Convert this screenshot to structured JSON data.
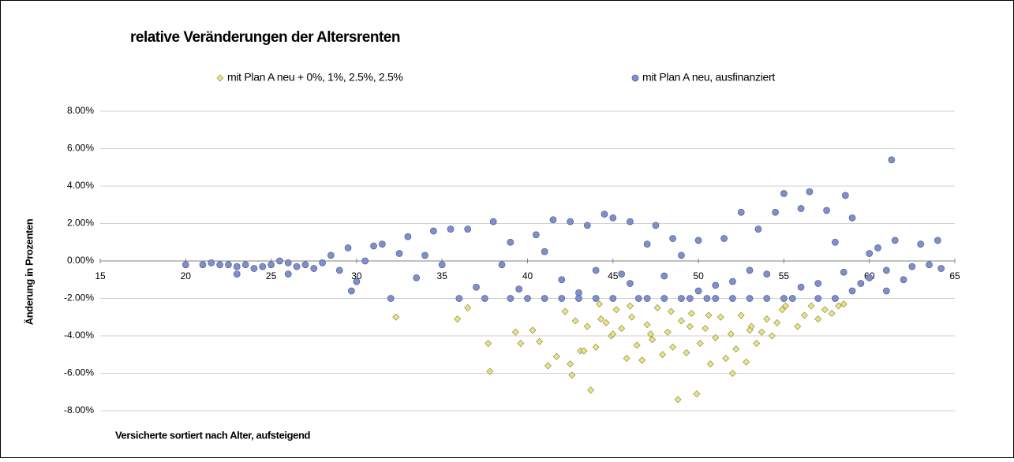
{
  "chart_data": {
    "type": "scatter",
    "title": "relative Veränderungen der Altersrenten",
    "x_label": "Versicherte sortiert nach Alter, aufsteigend",
    "y_label": "Änderung in Prozenten",
    "grid": true,
    "xlim": [
      15,
      65
    ],
    "xticks": [
      15,
      20,
      25,
      30,
      35,
      40,
      45,
      50,
      55,
      60,
      65
    ],
    "ylim": [
      -8,
      8
    ],
    "yticks": [
      {
        "value": -8,
        "label": "-8.00%"
      },
      {
        "value": -6,
        "label": "-6.00%"
      },
      {
        "value": -4,
        "label": "-4.00%"
      },
      {
        "value": -2,
        "label": "-2.00%"
      },
      {
        "value": 0,
        "label": "0.00%"
      },
      {
        "value": 2,
        "label": "2.00%"
      },
      {
        "value": 4,
        "label": "4.00%"
      },
      {
        "value": 6,
        "label": "6.00%"
      },
      {
        "value": 8,
        "label": "8.00%"
      }
    ],
    "series": [
      {
        "name": "mit Plan A neu + 0%, 1%, 2.5%, 2.5%",
        "color": "#ece57c",
        "marker": "diamond",
        "x": [
          32.3,
          35.9,
          36.5,
          37.7,
          37.8,
          39.3,
          39.6,
          40.3,
          40.7,
          41.2,
          41.7,
          42.2,
          42.5,
          42.6,
          42.8,
          43.1,
          43.5,
          43.7,
          44.0,
          44.3,
          44.6,
          44.9,
          45.2,
          45.5,
          45.8,
          46.1,
          46.4,
          46.7,
          47.0,
          47.3,
          47.6,
          47.9,
          48.2,
          48.5,
          48.8,
          49.0,
          49.3,
          49.6,
          49.9,
          50.1,
          50.4,
          50.7,
          51.0,
          51.3,
          51.6,
          51.9,
          52.2,
          52.5,
          52.8,
          53.1,
          53.4,
          53.7,
          54.0,
          54.3,
          54.6,
          54.9,
          55.1,
          55.8,
          56.2,
          56.6,
          57.0,
          57.4,
          57.8,
          58.2,
          58.5,
          46.0,
          47.2,
          48.4,
          49.5,
          50.6,
          52.0,
          53.0,
          44.2,
          45.0,
          43.3
        ],
        "values": [
          -3.0,
          -3.1,
          -2.5,
          -4.4,
          -5.9,
          -3.8,
          -4.4,
          -3.7,
          -4.3,
          -5.6,
          -5.1,
          -2.7,
          -5.5,
          -6.1,
          -3.2,
          -4.8,
          -3.5,
          -6.9,
          -4.6,
          -3.1,
          -3.3,
          -4.0,
          -2.6,
          -3.6,
          -5.2,
          -3.0,
          -4.5,
          -5.3,
          -3.4,
          -4.2,
          -2.5,
          -5.0,
          -3.8,
          -4.6,
          -7.4,
          -3.2,
          -4.9,
          -2.8,
          -7.1,
          -4.4,
          -3.6,
          -5.5,
          -4.1,
          -3.0,
          -5.2,
          -3.9,
          -4.7,
          -2.9,
          -5.4,
          -3.5,
          -4.4,
          -3.8,
          -3.1,
          -4.0,
          -3.3,
          -2.6,
          -2.4,
          -3.5,
          -2.9,
          -2.4,
          -3.1,
          -2.6,
          -2.8,
          -2.4,
          -2.3,
          -2.4,
          -3.9,
          -2.7,
          -3.5,
          -2.9,
          -6.0,
          -3.7,
          -2.3,
          -3.9,
          -4.8
        ]
      },
      {
        "name": "mit Plan A neu, ausfinanziert",
        "color": "#7f90c8",
        "marker": "circle",
        "x": [
          20.0,
          21.0,
          21.5,
          22.0,
          22.5,
          23.0,
          23.0,
          23.5,
          24.0,
          24.5,
          25.0,
          25.5,
          26.0,
          26.0,
          26.5,
          27.0,
          27.5,
          28.0,
          28.5,
          29.0,
          29.5,
          29.7,
          30.0,
          30.5,
          31.0,
          31.5,
          32.0,
          32.5,
          33.0,
          33.5,
          34.0,
          34.5,
          35.0,
          35.5,
          36.0,
          36.5,
          37.0,
          37.5,
          38.0,
          38.5,
          39.0,
          39.0,
          39.5,
          40.0,
          40.5,
          41.0,
          41.0,
          41.5,
          42.0,
          42.0,
          42.5,
          43.0,
          43.0,
          43.5,
          44.0,
          44.0,
          44.5,
          45.0,
          45.0,
          45.5,
          46.0,
          46.0,
          46.5,
          47.0,
          47.0,
          47.5,
          48.0,
          48.0,
          48.5,
          49.0,
          49.0,
          49.5,
          50.0,
          50.0,
          50.5,
          51.0,
          51.0,
          51.5,
          52.0,
          52.0,
          52.5,
          53.0,
          53.0,
          53.5,
          54.0,
          54.0,
          54.5,
          55.0,
          55.0,
          55.5,
          56.0,
          56.0,
          56.5,
          57.0,
          57.0,
          57.5,
          58.0,
          58.0,
          58.5,
          58.6,
          59.0,
          59.0,
          59.5,
          60.0,
          60.0,
          60.5,
          61.0,
          61.0,
          61.3,
          61.5,
          62.0,
          62.5,
          63.0,
          63.5,
          64.0,
          64.2
        ],
        "values": [
          -0.2,
          -0.2,
          -0.1,
          -0.2,
          -0.2,
          -0.3,
          -0.7,
          -0.2,
          -0.4,
          -0.3,
          -0.2,
          0.0,
          -0.1,
          -0.7,
          -0.3,
          -0.2,
          -0.4,
          -0.1,
          0.3,
          -0.5,
          0.7,
          -1.6,
          -1.1,
          0.0,
          0.8,
          0.9,
          -2.0,
          0.4,
          1.3,
          -0.9,
          0.3,
          1.6,
          -0.2,
          1.7,
          -2.0,
          1.7,
          -1.4,
          -2.0,
          2.1,
          -0.2,
          1.0,
          -2.0,
          -1.5,
          -2.0,
          1.4,
          0.5,
          -2.0,
          2.2,
          -2.0,
          -1.0,
          2.1,
          -1.7,
          -2.0,
          1.9,
          -2.0,
          -0.5,
          2.5,
          2.3,
          -2.0,
          -0.7,
          2.1,
          -1.2,
          -2.0,
          0.9,
          -2.0,
          1.9,
          -2.0,
          -0.8,
          1.2,
          0.3,
          -2.0,
          -2.0,
          1.1,
          -1.6,
          -2.0,
          -1.3,
          -2.0,
          1.2,
          -2.0,
          -1.1,
          2.6,
          -0.5,
          -2.0,
          1.7,
          -2.0,
          -0.7,
          2.6,
          3.6,
          -2.0,
          -2.0,
          2.8,
          -1.4,
          3.7,
          -2.0,
          -1.2,
          2.7,
          1.0,
          -2.0,
          -0.6,
          3.5,
          2.3,
          -1.6,
          -1.2,
          0.4,
          -0.9,
          0.7,
          -0.5,
          -1.6,
          5.4,
          1.1,
          -1.0,
          -0.3,
          0.9,
          -0.2,
          1.1,
          -0.4
        ]
      }
    ],
    "legend": "top"
  }
}
